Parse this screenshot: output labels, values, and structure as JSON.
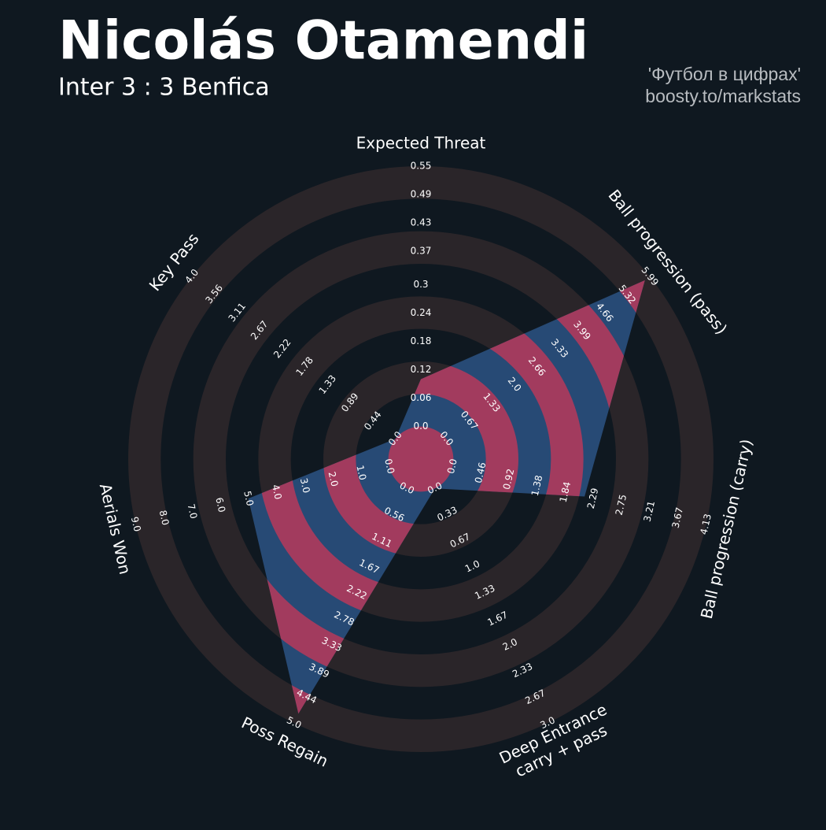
{
  "chart_data": {
    "type": "radar",
    "title": "Nicolás Otamendi",
    "subtitle": "Inter 3 : 3 Benfica",
    "credits": [
      "'Футбол в цифрах'",
      "boosty.to/markstats"
    ],
    "categories": [
      "Expected Threat",
      "Ball progression (pass)",
      "Ball progression (carry)",
      "Deep Entrance\ncarry + pass",
      "Poss Regain",
      "Aerials Won",
      "Key Pass"
    ],
    "values": [
      0.1,
      5.85,
      2.15,
      0,
      4.8,
      5,
      0
    ],
    "color": "#274a75",
    "highlight_color": "#a23b5e",
    "ring_color": "#2a2529",
    "background": "#0f1820",
    "axes": [
      {
        "lim": [
          0,
          0.55
        ],
        "ticks": [
          {
            "value": 0,
            "label": "0.0"
          },
          0.06,
          0.12,
          0.18,
          0.24,
          0.3,
          0.37,
          0.43,
          0.49,
          0.55
        ]
      },
      {
        "lim": [
          0,
          5.99
        ],
        "ticks": [
          {
            "value": 0,
            "label": "0.0"
          },
          0.67,
          1.33,
          {
            "value": 2,
            "label": "2.0"
          },
          2.66,
          3.33,
          3.99,
          4.66,
          5.32,
          5.99
        ]
      },
      {
        "lim": [
          0,
          4.13
        ],
        "ticks": [
          {
            "value": 0,
            "label": "0.0"
          },
          0.46,
          0.92,
          1.38,
          1.84,
          2.29,
          2.75,
          3.21,
          3.67,
          4.13
        ]
      },
      {
        "lim": [
          0,
          3
        ],
        "ticks": [
          {
            "value": 0,
            "label": "0.0"
          },
          0.33,
          0.67,
          {
            "value": 1,
            "label": "1.0"
          },
          1.33,
          1.67,
          {
            "value": 2,
            "label": "2.0"
          },
          2.33,
          2.67,
          {
            "value": 3,
            "label": "3.0"
          }
        ]
      },
      {
        "lim": [
          0,
          5
        ],
        "ticks": [
          {
            "value": 0,
            "label": "0.0"
          },
          0.56,
          1.11,
          1.67,
          2.22,
          2.78,
          3.33,
          3.89,
          4.44,
          {
            "value": 5,
            "label": "5.0"
          }
        ]
      },
      {
        "lim": [
          0,
          9
        ],
        "ticks": [
          {
            "value": 0,
            "label": "0.0"
          },
          {
            "value": 1,
            "label": "1.0"
          },
          {
            "value": 2,
            "label": "2.0"
          },
          {
            "value": 3,
            "label": "3.0"
          },
          {
            "value": 4,
            "label": "4.0"
          },
          {
            "value": 5,
            "label": "5.0"
          },
          {
            "value": 6,
            "label": "6.0"
          },
          {
            "value": 7,
            "label": "7.0"
          },
          {
            "value": 8,
            "label": "8.0"
          },
          {
            "value": 9,
            "label": "9.0"
          }
        ]
      },
      {
        "lim": [
          0,
          4
        ],
        "ticks": [
          {
            "value": 0,
            "label": "0.0"
          },
          0.44,
          0.89,
          1.33,
          1.78,
          2.22,
          2.67,
          3.11,
          3.56,
          {
            "value": 4,
            "label": "4.0"
          }
        ]
      }
    ]
  }
}
